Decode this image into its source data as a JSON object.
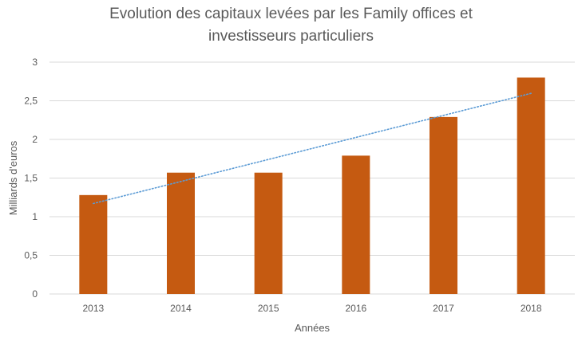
{
  "chart_data": {
    "type": "bar",
    "title_lines": [
      "Evolution des capitaux levées par les Family offices et",
      "investisseurs particuliers"
    ],
    "xlabel": "Années",
    "ylabel": "Milliards d'euros",
    "categories": [
      "2013",
      "2014",
      "2015",
      "2016",
      "2017",
      "2018"
    ],
    "values": [
      1.28,
      1.57,
      1.57,
      1.79,
      2.29,
      2.8
    ],
    "ylim": [
      0,
      3
    ],
    "yticks": [
      0,
      0.5,
      1,
      1.5,
      2,
      2.5,
      3
    ],
    "ytick_labels": [
      "0",
      "0,5",
      "1",
      "1,5",
      "2",
      "2,5",
      "3"
    ],
    "grid": true,
    "trendline": {
      "type": "linear",
      "style": "dotted",
      "color": "#5B9BD5"
    },
    "bar_color": "#C55A11",
    "grid_color": "#D9D9D9"
  }
}
